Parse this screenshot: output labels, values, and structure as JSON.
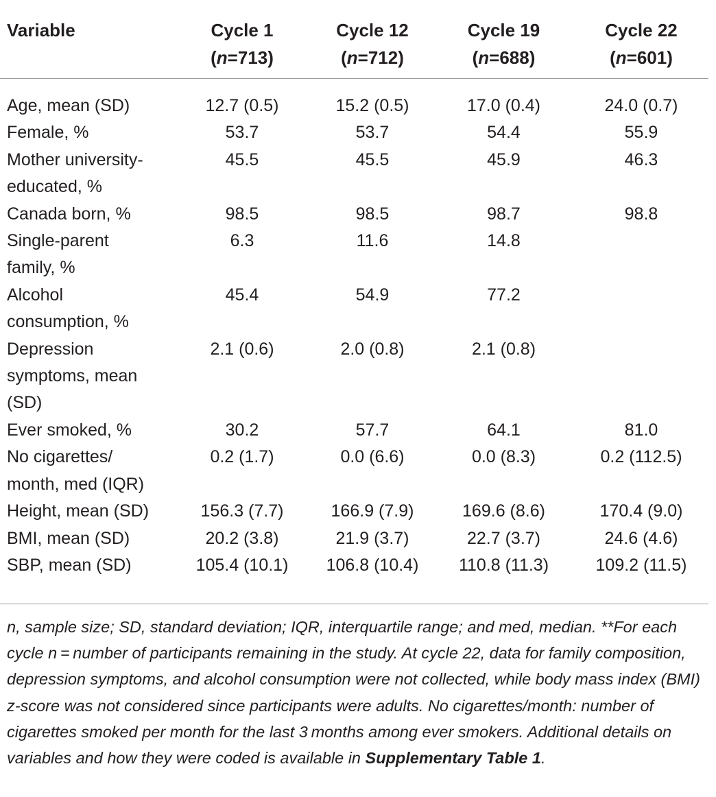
{
  "table": {
    "header": {
      "variable": "Variable",
      "cycles": [
        {
          "name": "Cycle 1",
          "n_label": "n",
          "n_value": "=713",
          "open": "(",
          "close": ")"
        },
        {
          "name": "Cycle 12",
          "n_label": "n",
          "n_value": "=712",
          "open": "(",
          "close": ")"
        },
        {
          "name": "Cycle 19",
          "n_label": "n",
          "n_value": "=688",
          "open": "(",
          "close": ")"
        },
        {
          "name": "Cycle 22",
          "n_label": "n",
          "n_value": "=601",
          "open": "(",
          "close": ")"
        }
      ]
    },
    "rows": [
      {
        "label": "Age, mean (SD)",
        "values": [
          "12.7 (0.5)",
          "15.2 (0.5)",
          "17.0 (0.4)",
          "24.0 (0.7)"
        ]
      },
      {
        "label": "Female, %",
        "values": [
          "53.7",
          "53.7",
          "54.4",
          "55.9"
        ]
      },
      {
        "label": "Mother university-educated, %",
        "values": [
          "45.5",
          "45.5",
          "45.9",
          "46.3"
        ]
      },
      {
        "label": "Canada born, %",
        "values": [
          "98.5",
          "98.5",
          "98.7",
          "98.8"
        ]
      },
      {
        "label": "Single-parent family, %",
        "values": [
          "6.3",
          "11.6",
          "14.8",
          ""
        ]
      },
      {
        "label": "Alcohol consumption, %",
        "values": [
          "45.4",
          "54.9",
          "77.2",
          ""
        ]
      },
      {
        "label": "Depression symptoms, mean (SD)",
        "values": [
          "2.1 (0.6)",
          "2.0 (0.8)",
          "2.1 (0.8)",
          ""
        ]
      },
      {
        "label": "Ever smoked, %",
        "values": [
          "30.2",
          "57.7",
          "64.1",
          "81.0"
        ]
      },
      {
        "label": "No cigarettes/ month, med (IQR)",
        "values": [
          "0.2 (1.7)",
          "0.0 (6.6)",
          "0.0 (8.3)",
          "0.2 (112.5)"
        ]
      },
      {
        "label": "Height, mean (SD)",
        "values": [
          "156.3 (7.7)",
          "166.9 (7.9)",
          "169.6 (8.6)",
          "170.4 (9.0)"
        ]
      },
      {
        "label": "BMI, mean (SD)",
        "values": [
          "20.2 (3.8)",
          "21.9 (3.7)",
          "22.7 (3.7)",
          "24.6 (4.6)"
        ]
      },
      {
        "label": "SBP, mean (SD)",
        "values": [
          "105.4 (10.1)",
          "106.8 (10.4)",
          "110.8 (11.3)",
          "109.2 (11.5)"
        ]
      }
    ]
  },
  "footnote": {
    "text": "n, sample size; SD, standard deviation; IQR, interquartile range; and med, median. **For each cycle n = number of participants remaining in the study. At cycle 22, data for family composition, depression symptoms, and alcohol consumption were not collected, while body mass index (BMI) z-score was not considered since participants were adults. No cigarettes/month: number of cigarettes smoked per month for the last 3 months among ever smokers. Additional details on variables and how they were coded is available in ",
    "link_text": "Supplementary Table 1",
    "end": "."
  }
}
